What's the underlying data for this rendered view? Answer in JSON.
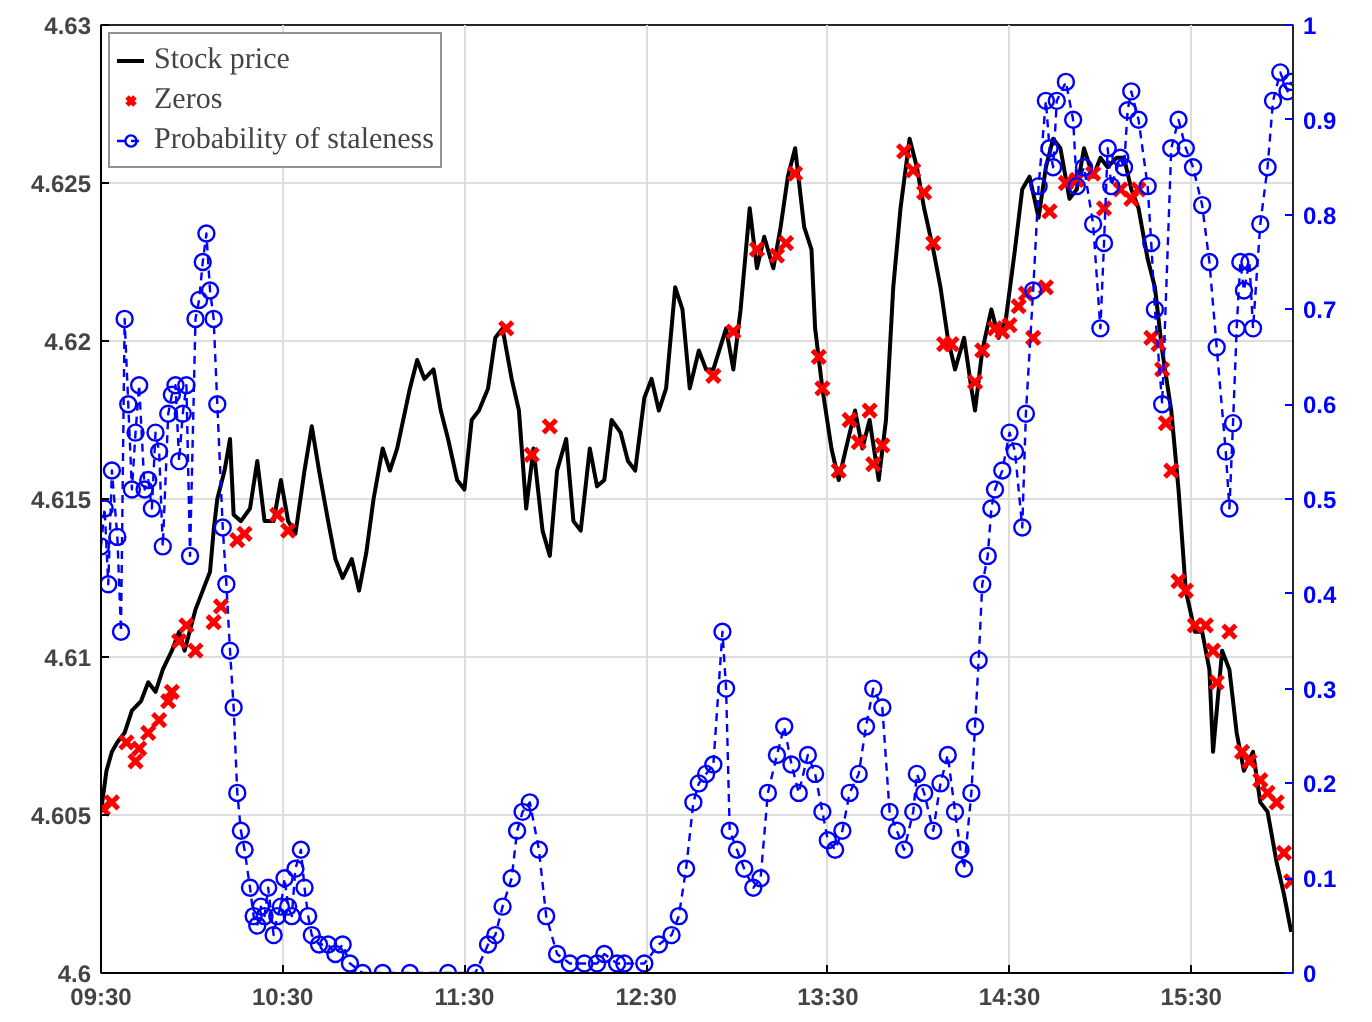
{
  "chart_data": {
    "type": "line",
    "xlim": [
      9.5,
      16.06
    ],
    "xticks": [
      {
        "value": 9.5,
        "label": "09:30"
      },
      {
        "value": 10.5,
        "label": "10:30"
      },
      {
        "value": 11.5,
        "label": "11:30"
      },
      {
        "value": 12.5,
        "label": "12:30"
      },
      {
        "value": 13.5,
        "label": "13:30"
      },
      {
        "value": 14.5,
        "label": "14:30"
      },
      {
        "value": 15.5,
        "label": "15:30"
      }
    ],
    "ylim": [
      4.6,
      4.63
    ],
    "yticks": [
      4.6,
      4.605,
      4.61,
      4.615,
      4.62,
      4.625,
      4.63
    ],
    "y2lim": [
      0,
      1
    ],
    "y2ticks": [
      0,
      0.1,
      0.2,
      0.3,
      0.4,
      0.5,
      0.6,
      0.7,
      0.8,
      0.9,
      1
    ],
    "grid": true,
    "legend": "top left",
    "series": [
      {
        "name": "Stock price",
        "color": "#000000",
        "marker": "none",
        "line_style": "solid",
        "x": [
          9.5,
          9.53,
          9.56,
          9.59,
          9.63,
          9.67,
          9.72,
          9.76,
          9.8,
          9.84,
          9.89,
          9.93,
          9.96,
          10.02,
          10.06,
          10.1,
          10.12,
          10.14,
          10.18,
          10.21,
          10.23,
          10.27,
          10.32,
          10.36,
          10.4,
          10.45,
          10.49,
          10.53,
          10.57,
          10.62,
          10.66,
          10.7,
          10.75,
          10.79,
          10.83,
          10.88,
          10.92,
          10.96,
          11.0,
          11.05,
          11.09,
          11.13,
          11.2,
          11.24,
          11.28,
          11.33,
          11.37,
          11.41,
          11.46,
          11.5,
          11.54,
          11.58,
          11.63,
          11.67,
          11.71,
          11.76,
          11.8,
          11.84,
          11.88,
          11.93,
          11.97,
          12.01,
          12.06,
          12.1,
          12.14,
          12.19,
          12.23,
          12.27,
          12.31,
          12.36,
          12.4,
          12.44,
          12.49,
          12.53,
          12.57,
          12.61,
          12.66,
          12.7,
          12.74,
          12.79,
          12.83,
          12.87,
          12.94,
          12.98,
          13.02,
          13.07,
          13.11,
          13.15,
          13.2,
          13.24,
          13.28,
          13.32,
          13.37,
          13.41,
          13.43,
          13.47,
          13.52,
          13.56,
          13.6,
          13.65,
          13.69,
          13.73,
          13.78,
          13.82,
          13.86,
          13.9,
          13.95,
          13.99,
          14.03,
          14.08,
          14.12,
          14.16,
          14.2,
          14.25,
          14.29,
          14.31,
          14.35,
          14.4,
          14.44,
          14.48,
          14.53,
          14.57,
          14.61,
          14.66,
          14.7,
          14.74,
          14.78,
          14.83,
          14.87,
          14.91,
          14.96,
          15.0,
          15.04,
          15.09,
          15.13,
          15.17,
          15.21,
          15.26,
          15.3,
          15.34,
          15.39,
          15.43,
          15.47,
          15.52,
          15.56,
          15.6,
          15.62,
          15.67,
          15.71,
          15.75,
          15.79,
          15.84,
          15.88,
          15.92,
          15.97,
          16.01,
          16.05
        ],
        "values": [
          4.6051,
          4.6064,
          4.607,
          4.6073,
          4.6076,
          4.6083,
          4.6086,
          4.6092,
          4.6089,
          4.6096,
          4.6102,
          4.6108,
          4.6102,
          4.6115,
          4.6121,
          4.6127,
          4.614,
          4.615,
          4.6159,
          4.6169,
          4.6145,
          4.6143,
          4.6147,
          4.6162,
          4.6143,
          4.6143,
          4.6156,
          4.6143,
          4.6139,
          4.6159,
          4.6173,
          4.6159,
          4.6143,
          4.6131,
          4.6125,
          4.6131,
          4.6121,
          4.6133,
          4.615,
          4.6166,
          4.6159,
          4.6166,
          4.6185,
          4.6194,
          4.6188,
          4.6191,
          4.6178,
          4.6169,
          4.6156,
          4.6153,
          4.6175,
          4.6178,
          4.6185,
          4.6201,
          4.6204,
          4.6188,
          4.6178,
          4.6147,
          4.6166,
          4.614,
          4.6132,
          4.6159,
          4.6169,
          4.6143,
          4.614,
          4.6166,
          4.6154,
          4.6156,
          4.6175,
          4.6171,
          4.6162,
          4.6159,
          4.6182,
          4.6188,
          4.6178,
          4.6185,
          4.6217,
          4.621,
          4.6185,
          4.6197,
          4.6191,
          4.6191,
          4.6204,
          4.6191,
          4.621,
          4.6242,
          4.6223,
          4.6233,
          4.6223,
          4.6236,
          4.6252,
          4.6261,
          4.6236,
          4.6229,
          4.6204,
          4.6185,
          4.6166,
          4.6156,
          4.6166,
          4.6178,
          4.6166,
          4.6175,
          4.6156,
          4.6175,
          4.6217,
          4.6242,
          4.6264,
          4.6255,
          4.6242,
          4.6229,
          4.6217,
          4.6201,
          4.6191,
          4.6201,
          4.6185,
          4.6178,
          4.6197,
          4.621,
          4.6201,
          4.6207,
          4.6229,
          4.6248,
          4.6252,
          4.6239,
          4.6255,
          4.6264,
          4.6261,
          4.6245,
          4.6248,
          4.6261,
          4.6252,
          4.6258,
          4.6255,
          4.6258,
          4.6258,
          4.6248,
          4.6242,
          4.6226,
          4.6217,
          4.6197,
          4.6178,
          4.6153,
          4.6121,
          4.6108,
          4.6108,
          4.6096,
          4.607,
          4.6102,
          4.6096,
          4.6076,
          4.6064,
          4.607,
          4.6054,
          4.6051,
          4.6035,
          4.6025,
          4.6013
        ]
      },
      {
        "name": "Zeros",
        "type": "scatter",
        "color": "#ff0000",
        "marker": "cross",
        "x": [
          9.51,
          9.56,
          9.64,
          9.69,
          9.71,
          9.76,
          9.82,
          9.87,
          9.89,
          9.93,
          9.97,
          10.02,
          10.12,
          10.16,
          10.25,
          10.29,
          10.47,
          10.53,
          11.73,
          11.87,
          11.97,
          12.87,
          12.98,
          13.11,
          13.22,
          13.27,
          13.32,
          13.45,
          13.47,
          13.56,
          13.62,
          13.67,
          13.73,
          13.75,
          13.8,
          13.92,
          13.97,
          14.03,
          14.08,
          14.14,
          14.18,
          14.31,
          14.35,
          14.42,
          14.46,
          14.5,
          14.55,
          14.59,
          14.63,
          14.7,
          14.72,
          14.81,
          14.87,
          14.96,
          15.02,
          15.11,
          15.17,
          15.21,
          15.28,
          15.32,
          15.34,
          15.36,
          15.39,
          15.43,
          15.47,
          15.52,
          15.58,
          15.62,
          15.64,
          15.71,
          15.78,
          15.82,
          15.88,
          15.92,
          15.97,
          16.01,
          16.05
        ],
        "values": [
          4.6052,
          4.6054,
          4.6073,
          4.6067,
          4.6071,
          4.6076,
          4.608,
          4.6086,
          4.6089,
          4.6105,
          4.611,
          4.6102,
          4.6111,
          4.6116,
          4.6137,
          4.6139,
          4.6145,
          4.614,
          4.6204,
          4.6164,
          4.6173,
          4.6189,
          4.6203,
          4.6229,
          4.6227,
          4.6231,
          4.6253,
          4.6195,
          4.6185,
          4.6159,
          4.6175,
          4.6168,
          4.6178,
          4.6161,
          4.6167,
          4.626,
          4.6254,
          4.6247,
          4.6231,
          4.6199,
          4.6199,
          4.6187,
          4.6197,
          4.6204,
          4.6203,
          4.6205,
          4.6211,
          4.6215,
          4.6201,
          4.6217,
          4.6241,
          4.625,
          4.6251,
          4.6253,
          4.6242,
          4.6248,
          4.6245,
          4.6248,
          4.6201,
          4.6199,
          4.6191,
          4.6174,
          4.6159,
          4.6124,
          4.6121,
          4.611,
          4.611,
          4.6102,
          4.6092,
          4.6108,
          4.607,
          4.6067,
          4.6061,
          4.6057,
          4.6054,
          4.6038,
          4.6029
        ]
      },
      {
        "name": "Probability of staleness",
        "type": "line",
        "color": "#0000ff",
        "marker": "circle",
        "line_style": "dashed",
        "axis": "y2",
        "x": [
          9.5,
          9.52,
          9.54,
          9.56,
          9.59,
          9.61,
          9.63,
          9.65,
          9.67,
          9.69,
          9.71,
          9.74,
          9.76,
          9.78,
          9.8,
          9.82,
          9.84,
          9.87,
          9.89,
          9.91,
          9.93,
          9.95,
          9.97,
          9.99,
          10.02,
          10.04,
          10.06,
          10.08,
          10.1,
          10.12,
          10.14,
          10.17,
          10.19,
          10.21,
          10.23,
          10.25,
          10.27,
          10.29,
          10.32,
          10.34,
          10.36,
          10.38,
          10.4,
          10.42,
          10.45,
          10.47,
          10.49,
          10.51,
          10.53,
          10.55,
          10.57,
          10.6,
          10.62,
          10.64,
          10.66,
          10.7,
          10.75,
          10.79,
          10.83,
          10.87,
          10.94,
          11.05,
          11.2,
          11.41,
          11.56,
          11.63,
          11.67,
          11.71,
          11.76,
          11.79,
          11.82,
          11.86,
          11.91,
          11.95,
          12.01,
          12.08,
          12.16,
          12.23,
          12.27,
          12.34,
          12.38,
          12.49,
          12.57,
          12.64,
          12.68,
          12.72,
          12.76,
          12.79,
          12.83,
          12.87,
          12.92,
          12.94,
          12.96,
          13.0,
          13.04,
          13.09,
          13.13,
          13.17,
          13.22,
          13.26,
          13.3,
          13.34,
          13.39,
          13.43,
          13.47,
          13.5,
          13.54,
          13.58,
          13.62,
          13.67,
          13.71,
          13.75,
          13.8,
          13.84,
          13.88,
          13.92,
          13.97,
          13.99,
          14.03,
          14.08,
          14.12,
          14.16,
          14.2,
          14.23,
          14.25,
          14.29,
          14.31,
          14.33,
          14.35,
          14.38,
          14.4,
          14.42,
          14.46,
          14.5,
          14.53,
          14.57,
          14.59,
          14.63,
          14.66,
          14.7,
          14.72,
          14.74,
          14.76,
          14.81,
          14.85,
          14.87,
          14.91,
          14.96,
          15.0,
          15.02,
          15.04,
          15.06,
          15.11,
          15.13,
          15.15,
          15.17,
          15.21,
          15.26,
          15.28,
          15.3,
          15.34,
          15.39,
          15.43,
          15.47,
          15.51,
          15.56,
          15.6,
          15.64,
          15.69,
          15.71,
          15.73,
          15.75,
          15.77,
          15.79,
          15.82,
          15.84,
          15.88,
          15.92,
          15.95,
          15.99,
          16.03,
          16.05
        ],
        "values": [
          0.45,
          0.49,
          0.41,
          0.53,
          0.46,
          0.36,
          0.69,
          0.6,
          0.51,
          0.57,
          0.62,
          0.51,
          0.52,
          0.49,
          0.57,
          0.55,
          0.45,
          0.59,
          0.61,
          0.62,
          0.54,
          0.59,
          0.62,
          0.44,
          0.69,
          0.71,
          0.75,
          0.78,
          0.72,
          0.69,
          0.6,
          0.47,
          0.41,
          0.34,
          0.28,
          0.19,
          0.15,
          0.13,
          0.09,
          0.06,
          0.05,
          0.07,
          0.06,
          0.09,
          0.04,
          0.06,
          0.07,
          0.1,
          0.07,
          0.06,
          0.11,
          0.13,
          0.09,
          0.06,
          0.04,
          0.03,
          0.03,
          0.02,
          0.03,
          0.01,
          0,
          0,
          0,
          0,
          0,
          0.03,
          0.04,
          0.07,
          0.1,
          0.15,
          0.17,
          0.18,
          0.13,
          0.06,
          0.02,
          0.01,
          0.01,
          0.01,
          0.02,
          0.01,
          0.01,
          0.01,
          0.03,
          0.04,
          0.06,
          0.11,
          0.18,
          0.2,
          0.21,
          0.22,
          0.36,
          0.3,
          0.15,
          0.13,
          0.11,
          0.09,
          0.1,
          0.19,
          0.23,
          0.26,
          0.22,
          0.19,
          0.23,
          0.21,
          0.17,
          0.14,
          0.13,
          0.15,
          0.19,
          0.21,
          0.26,
          0.3,
          0.28,
          0.17,
          0.15,
          0.13,
          0.17,
          0.21,
          0.19,
          0.15,
          0.2,
          0.23,
          0.17,
          0.13,
          0.11,
          0.19,
          0.26,
          0.33,
          0.41,
          0.44,
          0.49,
          0.51,
          0.53,
          0.57,
          0.55,
          0.47,
          0.59,
          0.72,
          0.83,
          0.92,
          0.87,
          0.85,
          0.92,
          0.94,
          0.9,
          0.83,
          0.85,
          0.79,
          0.68,
          0.77,
          0.87,
          0.83,
          0.86,
          0.85,
          0.91,
          0.93,
          0.9,
          0.83,
          0.77,
          0.7,
          0.6,
          0.87,
          0.9,
          0.87,
          0.85,
          0.81,
          0.75,
          0.66,
          0.55,
          0.49,
          0.58,
          0.68,
          0.75,
          0.72,
          0.75,
          0.68,
          0.79,
          0.85,
          0.92,
          0.95,
          0.93,
          0.94
        ]
      }
    ]
  }
}
